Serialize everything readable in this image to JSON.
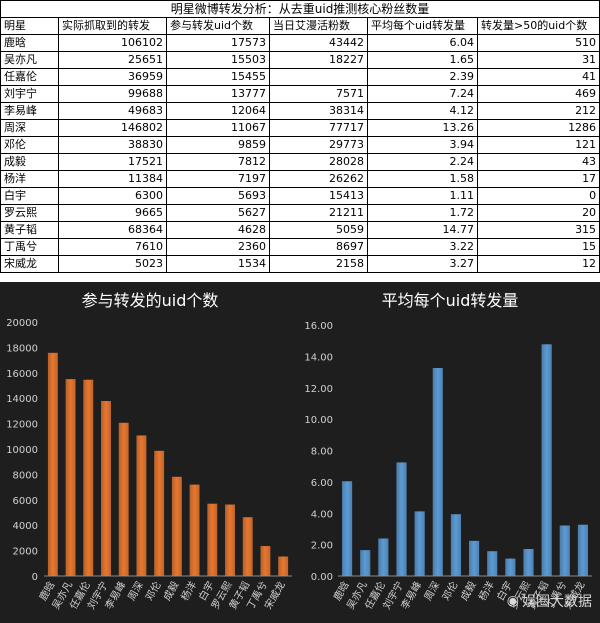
{
  "table": {
    "title": "明星微博转发分析：从去重uid推测核心粉丝数量",
    "headers": [
      "明星",
      "实际抓取到的转发",
      "参与转发uid个数",
      "当日艾漫活粉数",
      "平均每个uid转发量",
      "转发量>50的uid个数"
    ],
    "rows": [
      [
        "鹿晗",
        "106102",
        "17573",
        "43442",
        "6.04",
        "510"
      ],
      [
        "吴亦凡",
        "25651",
        "15503",
        "18227",
        "1.65",
        "31"
      ],
      [
        "任嘉伦",
        "36959",
        "15455",
        "",
        "2.39",
        "41"
      ],
      [
        "刘宇宁",
        "99688",
        "13777",
        "7571",
        "7.24",
        "469"
      ],
      [
        "李易峰",
        "49683",
        "12064",
        "38314",
        "4.12",
        "212"
      ],
      [
        "周深",
        "146802",
        "11067",
        "77717",
        "13.26",
        "1286"
      ],
      [
        "邓伦",
        "38830",
        "9859",
        "29773",
        "3.94",
        "121"
      ],
      [
        "成毅",
        "17521",
        "7812",
        "28028",
        "2.24",
        "43"
      ],
      [
        "杨洋",
        "11384",
        "7197",
        "26262",
        "1.58",
        "17"
      ],
      [
        "白宇",
        "6300",
        "5693",
        "15413",
        "1.11",
        "0"
      ],
      [
        "罗云熙",
        "9665",
        "5627",
        "21211",
        "1.72",
        "20"
      ],
      [
        "黄子韬",
        "68364",
        "4628",
        "5059",
        "14.77",
        "315"
      ],
      [
        "丁禹兮",
        "7610",
        "2360",
        "8697",
        "3.22",
        "15"
      ],
      [
        "宋威龙",
        "5023",
        "1534",
        "2158",
        "3.27",
        "12"
      ]
    ]
  },
  "chart_data": [
    {
      "type": "bar",
      "title": "参与转发的uid个数",
      "categories": [
        "鹿晗",
        "吴亦凡",
        "任嘉伦",
        "刘宇宁",
        "李易峰",
        "周深",
        "邓伦",
        "成毅",
        "杨洋",
        "白宇",
        "罗云熙",
        "黄子韬",
        "丁禹兮",
        "宋威龙"
      ],
      "values": [
        17573,
        15503,
        15455,
        13777,
        12064,
        11067,
        9859,
        7812,
        7197,
        5693,
        5627,
        4628,
        2360,
        1534
      ],
      "ylim": [
        0,
        20000
      ],
      "yticks": [
        "0",
        "2000",
        "4000",
        "6000",
        "8000",
        "10000",
        "12000",
        "14000",
        "16000",
        "18000",
        "20000"
      ],
      "grid": false,
      "bar_color": "#e8772e"
    },
    {
      "type": "bar",
      "title": "平均每个uid转发量",
      "categories": [
        "鹿晗",
        "吴亦凡",
        "任嘉伦",
        "刘宇宁",
        "李易峰",
        "周深",
        "邓伦",
        "成毅",
        "杨洋",
        "白宇",
        "罗云熙",
        "黄子韬",
        "丁禹兮",
        "宋威龙"
      ],
      "values": [
        6.04,
        1.65,
        2.39,
        7.24,
        4.12,
        13.26,
        3.94,
        2.24,
        1.58,
        1.11,
        1.72,
        14.77,
        3.22,
        3.27
      ],
      "ylim": [
        0,
        16
      ],
      "yticks": [
        "0.00",
        "2.00",
        "4.00",
        "6.00",
        "8.00",
        "10.00",
        "12.00",
        "14.00",
        "16.00"
      ],
      "grid": false,
      "bar_color": "#5b9bd5"
    }
  ],
  "watermark": {
    "icon": "weibo-icon",
    "text": "娱圈大数据"
  }
}
